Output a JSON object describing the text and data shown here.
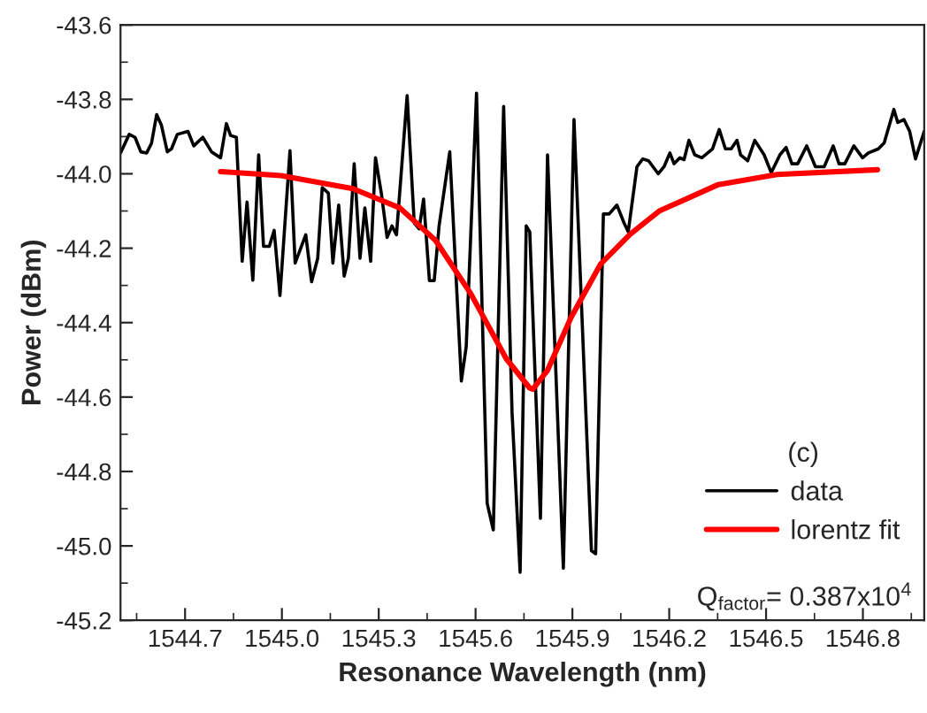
{
  "chart_data": {
    "type": "line",
    "xlabel": "Resonance Wavelength (nm)",
    "ylabel": "Power (dBm)",
    "legend_title": "(c)",
    "annotations": [
      "Q$_{factor}$= 0.387x10$^{4}$"
    ],
    "xlim": [
      1544.5,
      1546.99
    ],
    "ylim": [
      -45.2,
      -43.6
    ],
    "xticks": [
      {
        "value": 1544.55,
        "label": null
      },
      1544.7,
      {
        "value": 1544.85,
        "label": null
      },
      {
        "value": 1545.0,
        "label": "1545.0"
      },
      {
        "value": 1545.15,
        "label": null
      },
      1545.3,
      {
        "value": 1545.45,
        "label": null
      },
      1545.6,
      {
        "value": 1545.75,
        "label": null
      },
      1545.9,
      {
        "value": 1546.05,
        "label": null
      },
      1546.2,
      {
        "value": 1546.35,
        "label": null
      },
      1546.5,
      {
        "value": 1546.65,
        "label": null
      },
      1546.8,
      {
        "value": 1546.95,
        "label": null
      }
    ],
    "yticks": [
      -45.2,
      {
        "value": -45.1,
        "label": null
      },
      {
        "value": -45.0,
        "label": "-45.0"
      },
      {
        "value": -44.9,
        "label": null
      },
      -44.8,
      {
        "value": -44.7,
        "label": null
      },
      -44.6,
      {
        "value": -44.5,
        "label": null
      },
      -44.4,
      {
        "value": -44.3,
        "label": null
      },
      -44.2,
      {
        "value": -44.1,
        "label": null
      },
      {
        "value": -44.0,
        "label": "-44.0"
      },
      {
        "value": -43.9,
        "label": null
      },
      -43.8,
      {
        "value": -43.7,
        "label": null
      },
      -43.6
    ],
    "legend": "bottom right",
    "grid": false,
    "series": [
      {
        "name": "data",
        "color": "#000000",
        "x": [
          1544.5,
          1544.527,
          1544.545,
          1544.563,
          1544.581,
          1544.596,
          1544.612,
          1544.627,
          1544.645,
          1544.658,
          1544.676,
          1544.709,
          1544.727,
          1544.755,
          1544.782,
          1544.81,
          1544.828,
          1544.841,
          1544.859,
          1544.877,
          1544.892,
          1544.91,
          1544.928,
          1544.943,
          1544.961,
          1544.976,
          1544.994,
          1545.025,
          1545.041,
          1545.074,
          1545.092,
          1545.111,
          1545.125,
          1545.144,
          1545.158,
          1545.176,
          1545.193,
          1545.206,
          1545.224,
          1545.242,
          1545.257,
          1545.275,
          1545.29,
          1545.308,
          1545.326,
          1545.341,
          1545.355,
          1545.388,
          1545.41,
          1545.425,
          1545.439,
          1545.457,
          1545.472,
          1545.487,
          1545.52,
          1545.556,
          1545.571,
          1545.603,
          1545.636,
          1545.655,
          1545.687,
          1545.713,
          1545.738,
          1545.757,
          1545.768,
          1545.801,
          1545.823,
          1545.872,
          1545.905,
          1545.959,
          1545.972,
          1545.996,
          1546.014,
          1546.038,
          1546.06,
          1546.073,
          1546.1,
          1546.118,
          1546.136,
          1546.166,
          1546.184,
          1546.202,
          1546.215,
          1546.233,
          1546.246,
          1546.261,
          1546.279,
          1546.301,
          1546.334,
          1546.355,
          1546.374,
          1546.392,
          1546.41,
          1546.421,
          1546.443,
          1546.465,
          1546.494,
          1546.516,
          1546.543,
          1546.562,
          1546.58,
          1546.598,
          1546.626,
          1546.653,
          1546.68,
          1546.708,
          1546.726,
          1546.744,
          1546.772,
          1546.799,
          1546.817,
          1546.848,
          1546.866,
          1546.896,
          1546.908,
          1546.927,
          1546.945,
          1546.963,
          1546.99
        ],
        "values": [
          -43.944,
          -43.894,
          -43.902,
          -43.941,
          -43.944,
          -43.918,
          -43.841,
          -43.87,
          -43.941,
          -43.933,
          -43.894,
          -43.886,
          -43.925,
          -43.902,
          -43.941,
          -43.957,
          -43.865,
          -43.897,
          -43.902,
          -44.235,
          -44.076,
          -44.286,
          -43.949,
          -44.195,
          -44.195,
          -44.152,
          -44.327,
          -43.938,
          -44.24,
          -44.164,
          -44.29,
          -44.227,
          -44.037,
          -44.052,
          -44.24,
          -44.084,
          -44.275,
          -44.227,
          -43.973,
          -44.227,
          -44.092,
          -44.235,
          -43.957,
          -44.052,
          -44.171,
          -44.14,
          -44.164,
          -43.79,
          -44.132,
          -44.148,
          -44.068,
          -44.287,
          -44.287,
          -44.14,
          -43.941,
          -44.557,
          -44.465,
          -43.783,
          -44.886,
          -44.957,
          -43.819,
          -44.64,
          -45.071,
          -44.14,
          -44.156,
          -44.926,
          -43.949,
          -45.06,
          -43.854,
          -45.013,
          -45.021,
          -44.108,
          -44.108,
          -44.084,
          -44.132,
          -44.156,
          -43.981,
          -43.96,
          -43.965,
          -44.0,
          -43.981,
          -43.944,
          -43.973,
          -43.957,
          -43.962,
          -43.91,
          -43.949,
          -43.957,
          -43.933,
          -43.881,
          -43.933,
          -43.933,
          -43.91,
          -43.949,
          -43.965,
          -43.91,
          -43.949,
          -43.997,
          -43.949,
          -43.929,
          -43.973,
          -43.973,
          -43.925,
          -43.981,
          -43.981,
          -43.925,
          -43.973,
          -43.973,
          -43.925,
          -43.957,
          -43.944,
          -43.933,
          -43.917,
          -43.827,
          -43.862,
          -43.854,
          -43.886,
          -43.96,
          -43.886
        ]
      },
      {
        "name": "lorentz fit",
        "color": "#ff0000",
        "x": [
          1544.81,
          1544.997,
          1545.22,
          1545.366,
          1545.476,
          1545.585,
          1545.695,
          1545.768,
          1545.777,
          1545.823,
          1545.896,
          1545.987,
          1546.078,
          1546.169,
          1546.352,
          1546.534,
          1546.845
        ],
        "values": [
          -43.994,
          -44.005,
          -44.04,
          -44.092,
          -44.179,
          -44.322,
          -44.497,
          -44.576,
          -44.579,
          -44.528,
          -44.386,
          -44.243,
          -44.163,
          -44.1,
          -44.029,
          -44.002,
          -43.989
        ]
      }
    ]
  }
}
